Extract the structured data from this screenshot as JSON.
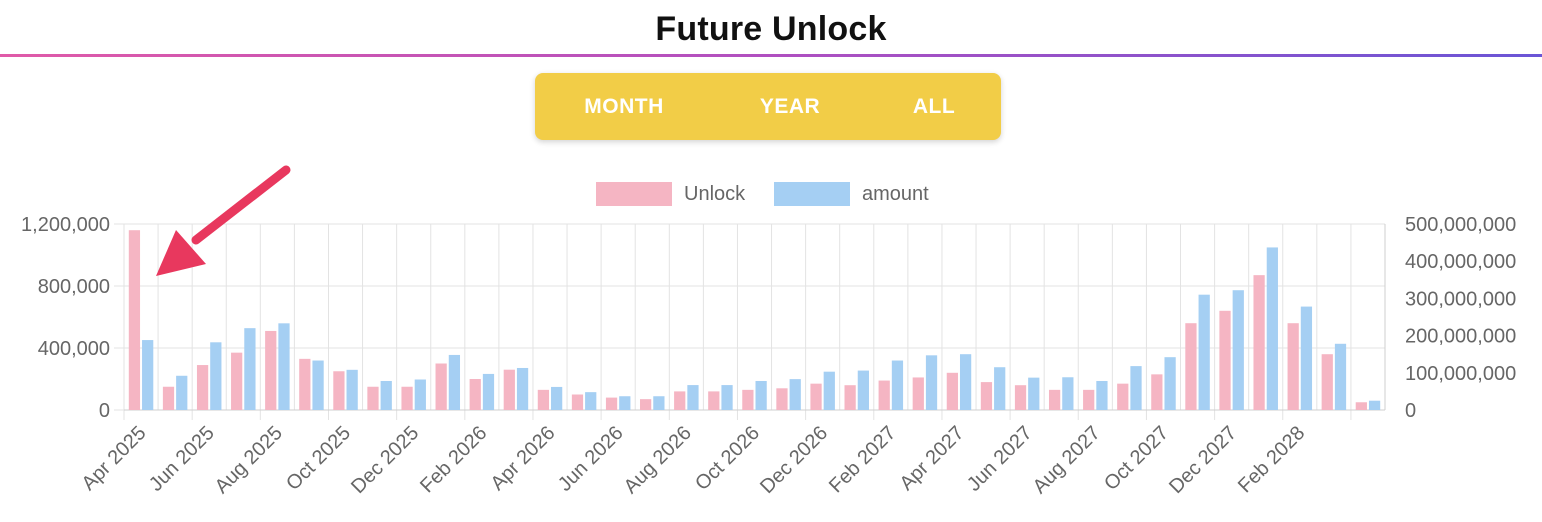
{
  "page": {
    "title": "Future Unlock"
  },
  "tabs": [
    {
      "label": "MONTH"
    },
    {
      "label": "YEAR"
    },
    {
      "label": "ALL"
    }
  ],
  "chart_data": {
    "type": "bar",
    "legend": {
      "position": "top-center"
    },
    "grid": true,
    "x_tick_labels": [
      "Apr 2025",
      "Jun 2025",
      "Aug 2025",
      "Oct 2025",
      "Dec 2025",
      "Feb 2026",
      "Apr 2026",
      "Jun 2026",
      "Aug 2026",
      "Oct 2026",
      "Dec 2026",
      "Feb 2027",
      "Apr 2027",
      "Jun 2027",
      "Aug 2027",
      "Oct 2027",
      "Dec 2027",
      "Feb 2028"
    ],
    "categories": [
      "Apr 2025",
      "May 2025",
      "Jun 2025",
      "Jul 2025",
      "Aug 2025",
      "Sep 2025",
      "Oct 2025",
      "Nov 2025",
      "Dec 2025",
      "Jan 2026",
      "Feb 2026",
      "Mar 2026",
      "Apr 2026",
      "May 2026",
      "Jun 2026",
      "Jul 2026",
      "Aug 2026",
      "Sep 2026",
      "Oct 2026",
      "Nov 2026",
      "Dec 2026",
      "Jan 2027",
      "Feb 2027",
      "Mar 2027",
      "Apr 2027",
      "May 2027",
      "Jun 2027",
      "Jul 2027",
      "Aug 2027",
      "Sep 2027",
      "Oct 2027",
      "Nov 2027",
      "Dec 2027",
      "Jan 2028",
      "Feb 2028",
      "Mar 2028",
      "Apr 2028"
    ],
    "left_axis": {
      "min": 0,
      "max": 1200000,
      "ticks": [
        0,
        400000,
        800000,
        1200000
      ],
      "tick_labels": [
        "0",
        "400,000",
        "800,000",
        "1,200,000"
      ]
    },
    "right_axis": {
      "min": 0,
      "max": 500000000,
      "ticks": [
        0,
        100000000,
        200000000,
        300000000,
        400000000,
        500000000
      ],
      "tick_labels": [
        "0",
        "100,000,000",
        "200,000,000",
        "300,000,000",
        "400,000,000",
        "500,000,000"
      ]
    },
    "series": [
      {
        "name": "Unlock",
        "axis": "left",
        "color": "#f5b5c3",
        "values": [
          1160000,
          150000,
          290000,
          370000,
          510000,
          330000,
          250000,
          150000,
          150000,
          300000,
          200000,
          260000,
          130000,
          100000,
          80000,
          70000,
          120000,
          120000,
          130000,
          140000,
          170000,
          160000,
          190000,
          210000,
          240000,
          180000,
          160000,
          130000,
          130000,
          170000,
          230000,
          560000,
          640000,
          870000,
          560000,
          360000,
          50000
        ]
      },
      {
        "name": "amount",
        "axis": "right",
        "color": "#a5cff3",
        "values": [
          188000000,
          92000000,
          182000000,
          220000000,
          233000000,
          133000000,
          108000000,
          78000000,
          82000000,
          148000000,
          97000000,
          113000000,
          62000000,
          48000000,
          37000000,
          37000000,
          67000000,
          67000000,
          78000000,
          83000000,
          103000000,
          106000000,
          133000000,
          147000000,
          150000000,
          115000000,
          87000000,
          88000000,
          78000000,
          118000000,
          142000000,
          310000000,
          322000000,
          437000000,
          278000000,
          178000000,
          25000000
        ]
      }
    ],
    "annotation": {
      "type": "arrow",
      "color": "#e8385e",
      "points_to": "Apr 2025"
    }
  }
}
